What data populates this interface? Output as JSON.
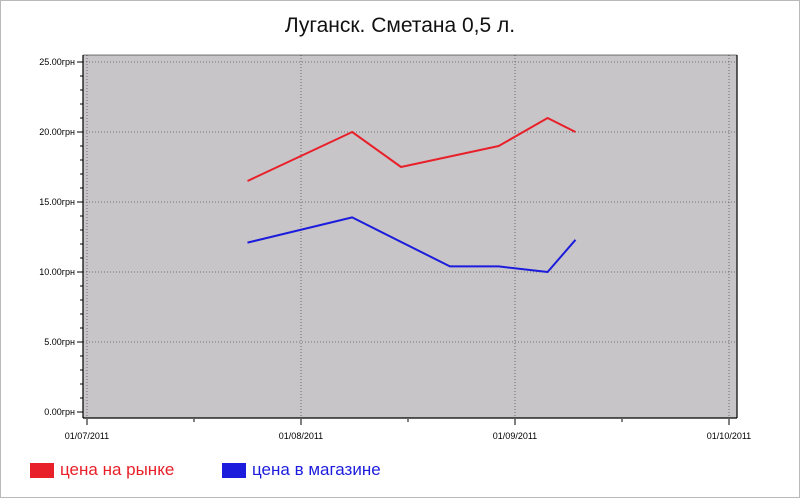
{
  "chart_data": {
    "type": "line",
    "title": "Луганск. Сметана 0,5 л.",
    "x_ticks": [
      "01/07/2011",
      "01/08/2011",
      "01/09/2011",
      "01/10/2011"
    ],
    "x_range": [
      "2011-07-01",
      "2011-10-01"
    ],
    "y_ticks": [
      "0.00грн",
      "5.00грн",
      "10.00грн",
      "15.00грн",
      "20.00грн",
      "25.00грн"
    ],
    "ylim": [
      0,
      25
    ],
    "grid": true,
    "legend_position": "bottom-left",
    "series": [
      {
        "name": "цена на рынке",
        "color": "#e8202a",
        "x": [
          "2011-07-24",
          "2011-08-08",
          "2011-08-15",
          "2011-08-29",
          "2011-09-05"
        ],
        "values": [
          16.5,
          20.0,
          17.5,
          19.0,
          21.0
        ],
        "end": {
          "x": "2011-09-09",
          "y": 20.0
        }
      },
      {
        "name": "цена в магазине",
        "color": "#1c1cdc",
        "x": [
          "2011-07-24",
          "2011-08-08",
          "2011-08-22",
          "2011-08-29",
          "2011-09-05"
        ],
        "values": [
          12.1,
          13.9,
          10.4,
          10.4,
          10.0
        ],
        "end": {
          "x": "2011-09-09",
          "y": 12.3
        }
      }
    ]
  }
}
